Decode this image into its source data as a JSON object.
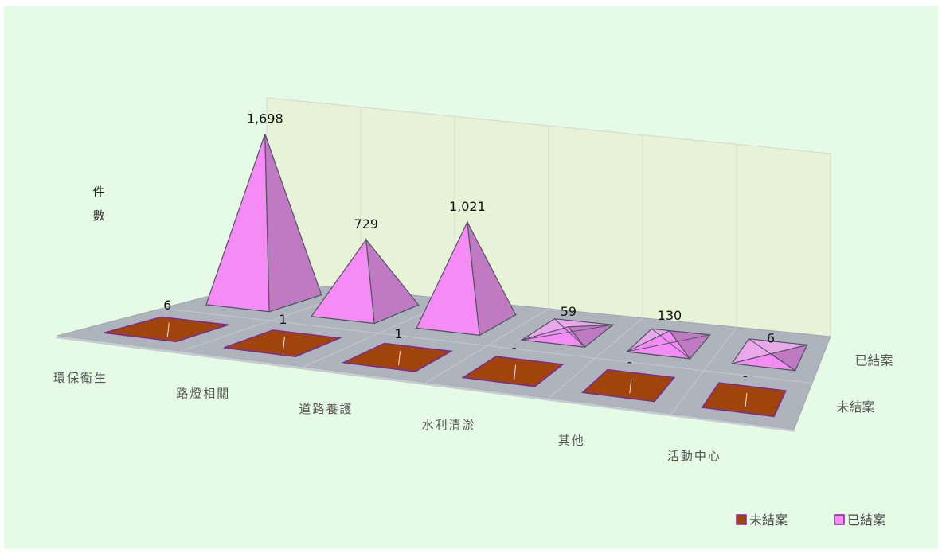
{
  "chart_data": {
    "type": "bar",
    "style": "3d-pyramid",
    "ylabel": "件數",
    "categories": [
      "環保衛生",
      "路燈相關",
      "道路養護",
      "水利清淤",
      "其他",
      "活動中心"
    ],
    "series": [
      {
        "name": "未結案",
        "values": [
          6,
          1,
          1,
          0,
          0,
          0
        ],
        "labels": [
          "6",
          "1",
          "1",
          "-",
          "-",
          "-"
        ],
        "color": "#A0440B"
      },
      {
        "name": "已結案",
        "values": [
          1698,
          729,
          1021,
          59,
          130,
          6
        ],
        "labels": [
          "1,698",
          "729",
          "1,021",
          "59",
          "130",
          "6"
        ],
        "color": "#F58CF5"
      }
    ],
    "ylim": [
      0,
      1750
    ],
    "legend": {
      "position": "bottom-right",
      "items": [
        "未結案",
        "已結案"
      ]
    },
    "grid": true
  }
}
